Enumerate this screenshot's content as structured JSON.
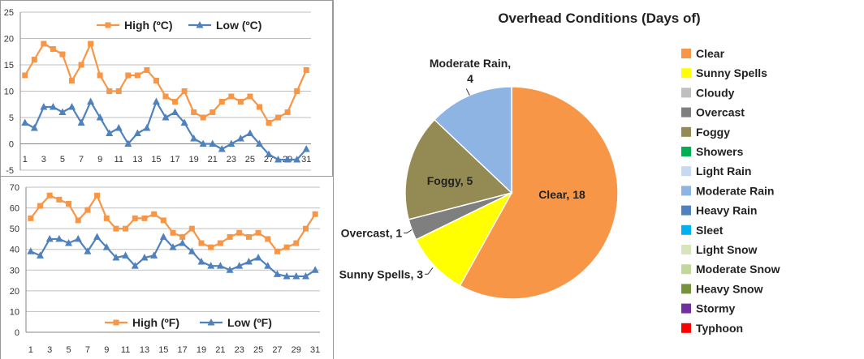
{
  "chart_data": [
    {
      "type": "line",
      "title": "",
      "xlabel": "",
      "ylabel": "",
      "x": [
        1,
        2,
        3,
        4,
        5,
        6,
        7,
        8,
        9,
        10,
        11,
        12,
        13,
        14,
        15,
        16,
        17,
        18,
        19,
        20,
        21,
        22,
        23,
        24,
        25,
        26,
        27,
        28,
        29,
        30,
        31
      ],
      "xticks": [
        1,
        3,
        5,
        7,
        9,
        11,
        13,
        15,
        17,
        19,
        21,
        23,
        25,
        27,
        29,
        31
      ],
      "ylim": [
        -5,
        25
      ],
      "yticks": [
        -5,
        0,
        5,
        10,
        15,
        20,
        25
      ],
      "grid": true,
      "legend": "top",
      "series": [
        {
          "name": "High (ºC)",
          "color": "#f79646",
          "marker": "square",
          "values": [
            13,
            16,
            19,
            18,
            17,
            12,
            15,
            19,
            13,
            10,
            10,
            13,
            13,
            14,
            12,
            9,
            8,
            10,
            6,
            5,
            6,
            8,
            9,
            8,
            9,
            7,
            4,
            5,
            6,
            10,
            14
          ]
        },
        {
          "name": "Low (ºC)",
          "color": "#4f81bd",
          "marker": "triangle",
          "values": [
            4,
            3,
            7,
            7,
            6,
            7,
            4,
            8,
            5,
            2,
            3,
            0,
            2,
            3,
            8,
            5,
            6,
            4,
            1,
            0,
            0,
            -1,
            0,
            1,
            2,
            0,
            -2,
            -3,
            -3,
            -3,
            -1
          ]
        }
      ]
    },
    {
      "type": "line",
      "title": "",
      "xlabel": "",
      "ylabel": "",
      "x": [
        1,
        2,
        3,
        4,
        5,
        6,
        7,
        8,
        9,
        10,
        11,
        12,
        13,
        14,
        15,
        16,
        17,
        18,
        19,
        20,
        21,
        22,
        23,
        24,
        25,
        26,
        27,
        28,
        29,
        30,
        31
      ],
      "xticks": [
        1,
        3,
        5,
        7,
        9,
        11,
        13,
        15,
        17,
        19,
        21,
        23,
        25,
        27,
        29,
        31
      ],
      "ylim": [
        0,
        70
      ],
      "yticks": [
        0,
        10,
        20,
        30,
        40,
        50,
        60,
        70
      ],
      "grid": true,
      "legend": "bottom",
      "series": [
        {
          "name": "High (ºF)",
          "color": "#f79646",
          "marker": "square",
          "values": [
            55,
            61,
            66,
            64,
            62,
            54,
            59,
            66,
            55,
            50,
            50,
            55,
            55,
            57,
            54,
            48,
            46,
            50,
            43,
            41,
            43,
            46,
            48,
            46,
            48,
            45,
            39,
            41,
            43,
            50,
            57
          ]
        },
        {
          "name": "Low (ºF)",
          "color": "#4f81bd",
          "marker": "triangle",
          "values": [
            39,
            37,
            45,
            45,
            43,
            45,
            39,
            46,
            41,
            36,
            37,
            32,
            36,
            37,
            46,
            41,
            43,
            39,
            34,
            32,
            32,
            30,
            32,
            34,
            36,
            32,
            28,
            27,
            27,
            27,
            30
          ]
        }
      ]
    },
    {
      "type": "pie",
      "title": "Overhead Conditions (Days of)",
      "legend": "right",
      "slices": [
        {
          "label": "Clear",
          "value": 18,
          "color": "#f79646",
          "data_label": "Clear, 18"
        },
        {
          "label": "Sunny Spells",
          "value": 3,
          "color": "#ffff00",
          "data_label": "Sunny Spells, 3"
        },
        {
          "label": "Cloudy",
          "value": 0,
          "color": "#bfbfbf"
        },
        {
          "label": "Overcast",
          "value": 1,
          "color": "#7f7f7f",
          "data_label": "Overcast, 1"
        },
        {
          "label": "Foggy",
          "value": 5,
          "color": "#948a54",
          "data_label": "Foggy, 5"
        },
        {
          "label": "Showers",
          "value": 0,
          "color": "#00b050"
        },
        {
          "label": "Light Rain",
          "value": 0,
          "color": "#c6d9f1"
        },
        {
          "label": "Moderate Rain",
          "value": 4,
          "color": "#8db4e2",
          "data_label_lines": [
            "Moderate Rain,",
            "4"
          ]
        },
        {
          "label": "Heavy Rain",
          "value": 0,
          "color": "#4f81bd"
        },
        {
          "label": "Sleet",
          "value": 0,
          "color": "#00b0f0"
        },
        {
          "label": "Light Snow",
          "value": 0,
          "color": "#d8e4bc"
        },
        {
          "label": "Moderate Snow",
          "value": 0,
          "color": "#c4d79b"
        },
        {
          "label": "Heavy Snow",
          "value": 0,
          "color": "#76933c"
        },
        {
          "label": "Stormy",
          "value": 0,
          "color": "#7030a0"
        },
        {
          "label": "Typhoon",
          "value": 0,
          "color": "#ff0000"
        }
      ]
    }
  ]
}
